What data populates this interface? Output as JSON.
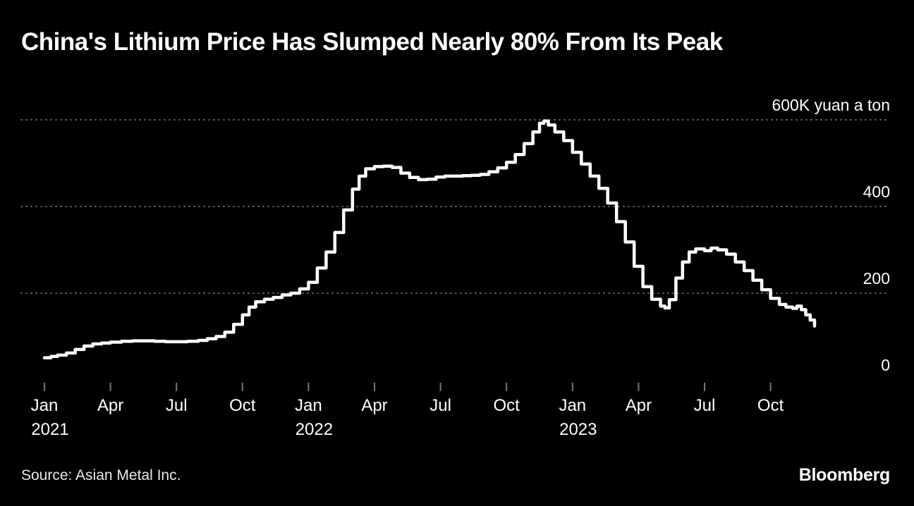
{
  "header": {
    "title": "China's Lithium Price Has Slumped Nearly 80% From Its Peak"
  },
  "footer": {
    "source": "Source: Asian Metal Inc.",
    "logo": "Bloomberg"
  },
  "colors": {
    "background": "#000000",
    "line": "#ffffff",
    "grid": "#606060",
    "tick": "#777777",
    "text": "#ffffff"
  },
  "chart_data": {
    "type": "line",
    "title": "China's Lithium Price Has Slumped Nearly 80% From Its Peak",
    "unit_label": "600K yuan a ton",
    "ylabel": "yuan a ton (thousands)",
    "xlabel": "",
    "ylim": [
      0,
      620
    ],
    "grid": "dotted-horizontal",
    "legend_position": "none",
    "y_ticks": [
      {
        "value": 600,
        "label": "600K yuan a ton"
      },
      {
        "value": 400,
        "label": "400"
      },
      {
        "value": 200,
        "label": "200"
      },
      {
        "value": 0,
        "label": "0"
      }
    ],
    "x_ticks": [
      {
        "month": 0,
        "label": "Jan",
        "year": "2021"
      },
      {
        "month": 3,
        "label": "Apr",
        "year": ""
      },
      {
        "month": 6,
        "label": "Jul",
        "year": ""
      },
      {
        "month": 9,
        "label": "Oct",
        "year": ""
      },
      {
        "month": 12,
        "label": "Jan",
        "year": "2022"
      },
      {
        "month": 15,
        "label": "Apr",
        "year": ""
      },
      {
        "month": 18,
        "label": "Jul",
        "year": ""
      },
      {
        "month": 21,
        "label": "Oct",
        "year": ""
      },
      {
        "month": 24,
        "label": "Jan",
        "year": "2023"
      },
      {
        "month": 27,
        "label": "Apr",
        "year": ""
      },
      {
        "month": 30,
        "label": "Jul",
        "year": ""
      },
      {
        "month": 33,
        "label": "Oct",
        "year": ""
      }
    ],
    "series": [
      {
        "name": "China lithium price (thousand yuan per ton)",
        "x_unit": "months since Jan 2021",
        "points": [
          [
            0,
            51
          ],
          [
            0.3,
            54
          ],
          [
            0.6,
            57
          ],
          [
            1,
            62
          ],
          [
            1.4,
            70
          ],
          [
            1.8,
            78
          ],
          [
            2.2,
            83
          ],
          [
            2.6,
            85
          ],
          [
            3,
            87
          ],
          [
            3.5,
            89
          ],
          [
            4,
            90
          ],
          [
            4.5,
            90
          ],
          [
            5,
            89
          ],
          [
            5.5,
            88
          ],
          [
            6,
            88
          ],
          [
            6.5,
            89
          ],
          [
            7,
            91
          ],
          [
            7.4,
            95
          ],
          [
            7.8,
            100
          ],
          [
            8.2,
            110
          ],
          [
            8.6,
            128
          ],
          [
            9,
            150
          ],
          [
            9.3,
            168
          ],
          [
            9.6,
            180
          ],
          [
            10,
            186
          ],
          [
            10.4,
            190
          ],
          [
            10.8,
            196
          ],
          [
            11.2,
            200
          ],
          [
            11.6,
            210
          ],
          [
            12,
            225
          ],
          [
            12.4,
            258
          ],
          [
            12.8,
            295
          ],
          [
            13.2,
            340
          ],
          [
            13.6,
            392
          ],
          [
            14,
            440
          ],
          [
            14.3,
            470
          ],
          [
            14.6,
            487
          ],
          [
            15,
            492
          ],
          [
            15.4,
            493
          ],
          [
            15.8,
            490
          ],
          [
            16.2,
            477
          ],
          [
            16.6,
            467
          ],
          [
            17,
            462
          ],
          [
            17.4,
            463
          ],
          [
            17.8,
            468
          ],
          [
            18.2,
            470
          ],
          [
            18.6,
            470
          ],
          [
            19,
            471
          ],
          [
            19.4,
            472
          ],
          [
            19.8,
            474
          ],
          [
            20.2,
            480
          ],
          [
            20.6,
            489
          ],
          [
            21,
            502
          ],
          [
            21.4,
            520
          ],
          [
            21.8,
            545
          ],
          [
            22.2,
            572
          ],
          [
            22.5,
            592
          ],
          [
            22.7,
            597
          ],
          [
            22.9,
            588
          ],
          [
            23.2,
            572
          ],
          [
            23.6,
            552
          ],
          [
            24,
            525
          ],
          [
            24.4,
            498
          ],
          [
            24.8,
            470
          ],
          [
            25.2,
            442
          ],
          [
            25.6,
            408
          ],
          [
            26,
            365
          ],
          [
            26.4,
            318
          ],
          [
            26.8,
            262
          ],
          [
            27.2,
            215
          ],
          [
            27.6,
            186
          ],
          [
            28,
            170
          ],
          [
            28.2,
            166
          ],
          [
            28.4,
            185
          ],
          [
            28.7,
            235
          ],
          [
            29,
            272
          ],
          [
            29.3,
            295
          ],
          [
            29.6,
            302
          ],
          [
            30,
            298
          ],
          [
            30.3,
            304
          ],
          [
            30.6,
            300
          ],
          [
            31,
            290
          ],
          [
            31.4,
            272
          ],
          [
            31.8,
            252
          ],
          [
            32.2,
            230
          ],
          [
            32.6,
            208
          ],
          [
            33,
            188
          ],
          [
            33.4,
            174
          ],
          [
            33.7,
            168
          ],
          [
            34,
            165
          ],
          [
            34.2,
            170
          ],
          [
            34.4,
            162
          ],
          [
            34.6,
            150
          ],
          [
            34.8,
            138
          ],
          [
            35,
            124
          ]
        ]
      }
    ]
  }
}
